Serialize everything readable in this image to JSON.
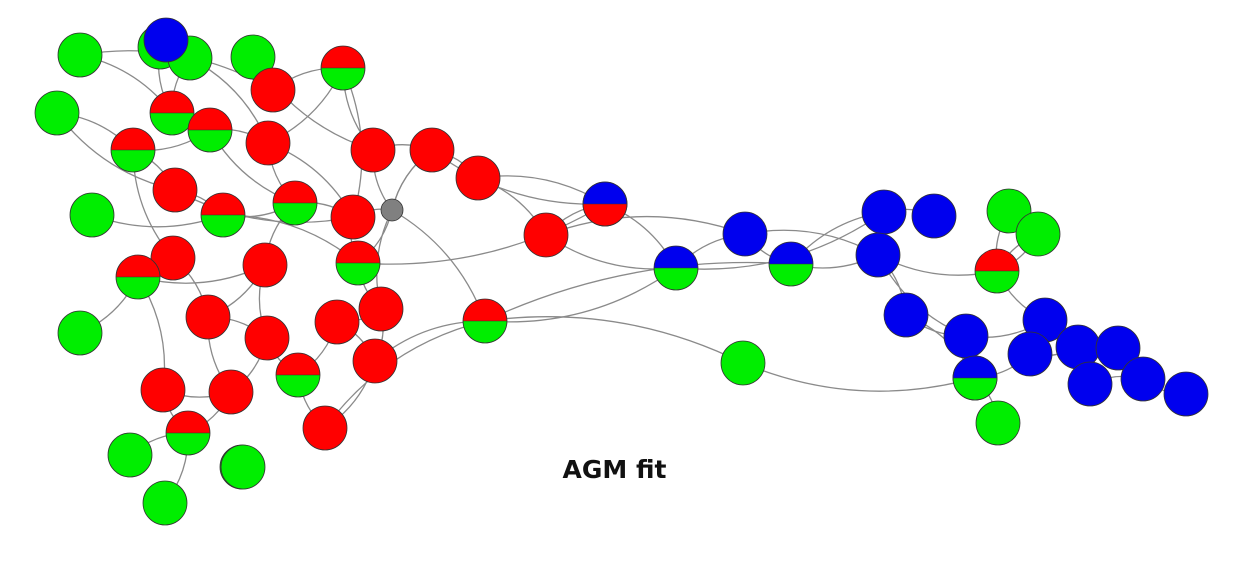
{
  "caption": "AGM fit",
  "colors": {
    "red": "#ff0000",
    "green": "#00ee00",
    "blue": "#0000ee",
    "gray": "#808080",
    "edge": "#8a8a8a",
    "outline": "#333333"
  },
  "node_memberships": [
    "green",
    "green",
    "green",
    "green",
    "green",
    "red-green",
    "green",
    "red-green",
    "red-green",
    "red",
    "red-green",
    "red",
    "red",
    "red",
    "red",
    "red",
    "red-green",
    "red-green",
    "red",
    "gray",
    "red",
    "green",
    "red-green",
    "red",
    "red-green",
    "red",
    "red-green",
    "red",
    "red",
    "red",
    "green",
    "red",
    "red",
    "red-green",
    "red",
    "red",
    "red-green",
    "red",
    "red",
    "green",
    "green",
    "green",
    "red-green",
    "blue-red",
    "blue-green",
    "blue",
    "blue-green",
    "blue",
    "blue",
    "blue",
    "blue",
    "green",
    "green",
    "blue-green",
    "blue",
    "blue",
    "blue",
    "blue",
    "blue",
    "blue",
    "blue",
    "blue",
    "blue",
    "blue-green",
    "green",
    "green"
  ]
}
